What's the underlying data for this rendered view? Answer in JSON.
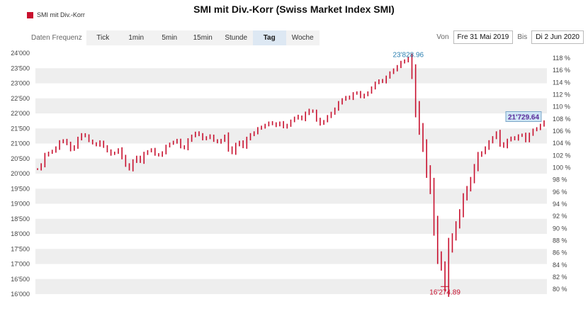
{
  "title": "SMI mit Div.-Korr (Swiss Market Index SMI)",
  "legend": {
    "label": "SMI mit Div.-Korr",
    "color": "#c8102e"
  },
  "toolbar": {
    "frequency_label": "Daten Frequenz",
    "buttons": [
      {
        "label": "Tick",
        "active": false
      },
      {
        "label": "1min",
        "active": false
      },
      {
        "label": "5min",
        "active": false
      },
      {
        "label": "15min",
        "active": false
      },
      {
        "label": "Stunde",
        "active": false
      },
      {
        "label": "Tag",
        "active": true
      },
      {
        "label": "Woche",
        "active": false
      }
    ],
    "from_label": "Von",
    "from_date": "Fre 31 Mai 2019",
    "to_label": "Bis",
    "to_date": "Di 2 Jun 2020"
  },
  "chart_data": {
    "type": "line",
    "series": [
      {
        "color": "#c8102e",
        "values": [
          20150,
          20300,
          20600,
          20700,
          20750,
          20850,
          21050,
          21100,
          21000,
          20800,
          20900,
          21150,
          21300,
          21250,
          21100,
          21000,
          20950,
          21050,
          20900,
          20750,
          20650,
          20700,
          20800,
          20550,
          20300,
          20150,
          20400,
          20550,
          20400,
          20650,
          20750,
          20800,
          20650,
          20600,
          20700,
          20900,
          21000,
          21050,
          21100,
          20900,
          20850,
          21100,
          21250,
          21350,
          21300,
          21150,
          21200,
          21250,
          21100,
          21050,
          21100,
          21250,
          20850,
          20700,
          20950,
          21050,
          20900,
          21150,
          21300,
          21350,
          21500,
          21550,
          21600,
          21700,
          21650,
          21600,
          21700,
          21550,
          21600,
          21750,
          21850,
          21900,
          21800,
          22000,
          22100,
          22050,
          21800,
          21650,
          21750,
          21900,
          22000,
          22150,
          22350,
          22450,
          22550,
          22500,
          22650,
          22700,
          22550,
          22600,
          22700,
          22850,
          23000,
          23100,
          23050,
          23200,
          23350,
          23450,
          23550,
          23700,
          23750,
          23828.96,
          23300,
          22200,
          21500,
          20900,
          20100,
          19500,
          18300,
          17300,
          16900,
          16274.89,
          17500,
          17900,
          18300,
          18700,
          19200,
          19500,
          19800,
          20200,
          20600,
          20700,
          20850,
          21050,
          21200,
          21350,
          21000,
          20900,
          21100,
          21200,
          21150,
          21250,
          21300,
          21100,
          21300,
          21450,
          21500,
          21600,
          21729.64
        ]
      }
    ],
    "ylim": [
      16000,
      24000
    ],
    "y_ticks": [
      24000,
      23500,
      23000,
      22500,
      22000,
      21500,
      21000,
      20500,
      20000,
      19500,
      19000,
      18500,
      18000,
      17500,
      17000,
      16500,
      16000
    ],
    "y_tick_labels": [
      "24'000",
      "23'500",
      "23'000",
      "22'500",
      "22'000",
      "21'500",
      "21'000",
      "20'500",
      "20'000",
      "19'500",
      "19'000",
      "18'500",
      "18'000",
      "17'500",
      "17'000",
      "16'500",
      "16'000"
    ],
    "y2_ticks": [
      118,
      116,
      114,
      112,
      110,
      108,
      106,
      104,
      102,
      100,
      98,
      96,
      94,
      92,
      90,
      88,
      86,
      84,
      82,
      80
    ],
    "y2_tick_labels": [
      "118 %",
      "116 %",
      "114 %",
      "112 %",
      "110 %",
      "108 %",
      "106 %",
      "104 %",
      "102 %",
      "100 %",
      "98 %",
      "96 %",
      "94 %",
      "92 %",
      "90 %",
      "88 %",
      "86 %",
      "84 %",
      "82 %",
      "80 %"
    ],
    "y2_base": 20200,
    "annotations": [
      {
        "label": "23'828.96",
        "value": 23828.96,
        "index": 101,
        "position": "above",
        "color": "#2a7fb0"
      },
      {
        "label": "16'274.89",
        "value": 16274.89,
        "index": 111,
        "position": "below",
        "color": "#c8102e"
      }
    ],
    "last_value_label": "21'729.64",
    "grid": "horizontal-bands"
  }
}
